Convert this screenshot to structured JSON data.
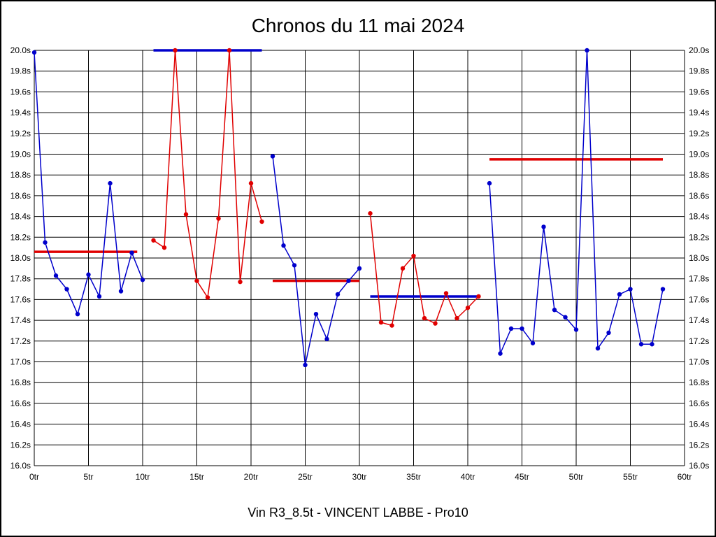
{
  "chart_data": {
    "type": "line",
    "title": "Chronos du 11 mai 2024",
    "subtitle": "Vin R3_8.5t - VINCENT LABBE - Pro10",
    "x_unit": "tr",
    "y_unit": "s",
    "xlim": [
      0,
      60
    ],
    "ylim": [
      16.0,
      20.0
    ],
    "x_tick_step": 5,
    "y_tick_step": 0.2,
    "grid": true,
    "legend": "none",
    "x_tick_labels": [
      "0tr",
      "5tr",
      "10tr",
      "15tr",
      "20tr",
      "25tr",
      "30tr",
      "35tr",
      "40tr",
      "45tr",
      "50tr",
      "55tr",
      "60tr"
    ],
    "y_tick_labels": [
      "20.0s",
      "19.8s",
      "19.6s",
      "19.4s",
      "19.2s",
      "19.0s",
      "18.8s",
      "18.6s",
      "18.4s",
      "18.2s",
      "18.0s",
      "17.8s",
      "17.6s",
      "17.4s",
      "17.2s",
      "17.0s",
      "16.8s",
      "16.6s",
      "16.4s",
      "16.2s",
      "16.0s"
    ],
    "colors": {
      "blue": "#0000cc",
      "red": "#e00000",
      "grid": "#000000"
    },
    "segments": [
      {
        "name": "stint-1",
        "color": "blue",
        "start_x": 0,
        "values": [
          19.98,
          18.15,
          17.83,
          17.7,
          17.46,
          17.84,
          17.63,
          18.72,
          17.68,
          18.05,
          17.79
        ]
      },
      {
        "name": "stint-2",
        "color": "red",
        "start_x": 11,
        "values": [
          18.17,
          18.1,
          20.0,
          18.42,
          17.78,
          17.62,
          18.38,
          20.0,
          17.77,
          18.72,
          18.35
        ]
      },
      {
        "name": "stint-3",
        "color": "blue",
        "start_x": 22,
        "values": [
          18.98,
          18.12,
          17.93,
          16.97,
          17.46,
          17.22,
          17.65,
          17.78,
          17.9
        ]
      },
      {
        "name": "stint-4",
        "color": "red",
        "start_x": 31,
        "values": [
          18.43,
          17.38,
          17.35,
          17.9,
          18.02,
          17.42,
          17.37,
          17.66,
          17.42,
          17.52,
          17.63
        ]
      },
      {
        "name": "stint-5",
        "color": "blue",
        "start_x": 42,
        "values": [
          18.72,
          17.08,
          17.32,
          17.32,
          17.18,
          18.3,
          17.5,
          17.43,
          17.31,
          20.0,
          17.13,
          17.28,
          17.65,
          17.7,
          17.17,
          17.17,
          17.7
        ]
      }
    ],
    "average_lines": [
      {
        "color": "red",
        "x1": 0,
        "x2": 9.5,
        "value": 18.06
      },
      {
        "color": "blue",
        "x1": 11,
        "x2": 21,
        "value": 20.0
      },
      {
        "color": "red",
        "x1": 22,
        "x2": 30,
        "value": 17.78
      },
      {
        "color": "blue",
        "x1": 31,
        "x2": 41,
        "value": 17.63
      },
      {
        "color": "red",
        "x1": 42,
        "x2": 58,
        "value": 18.95
      }
    ]
  }
}
